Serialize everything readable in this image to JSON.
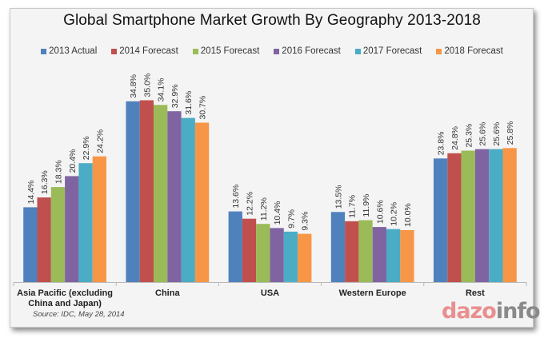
{
  "chart_data": {
    "type": "bar",
    "title": "Global Smartphone Market Growth By Geography 2013-2018",
    "xlabel": "",
    "ylabel": "",
    "ylim": [
      0,
      36
    ],
    "grid": false,
    "legend_position": "top",
    "categories": [
      [
        "Asia Pacific (excluding",
        "China and Japan)"
      ],
      [
        "China"
      ],
      [
        "USA"
      ],
      [
        "Western Europe"
      ],
      [
        "Rest"
      ]
    ],
    "series": [
      {
        "name": "2013 Actual",
        "color": "#4f81bd",
        "values": [
          14.4,
          34.8,
          13.6,
          13.5,
          23.8
        ]
      },
      {
        "name": "2014 Forecast",
        "color": "#c0504d",
        "values": [
          16.3,
          35.0,
          12.2,
          11.7,
          24.8
        ]
      },
      {
        "name": "2015 Forecast",
        "color": "#9bbb59",
        "values": [
          18.3,
          34.1,
          11.2,
          11.9,
          25.3
        ]
      },
      {
        "name": "2016 Forecast",
        "color": "#8064a2",
        "values": [
          20.4,
          32.9,
          10.4,
          10.6,
          25.6
        ]
      },
      {
        "name": "2017 Forecast",
        "color": "#4bacc6",
        "values": [
          22.9,
          31.6,
          9.7,
          10.2,
          25.6
        ]
      },
      {
        "name": "2018 Forecast",
        "color": "#f79646",
        "values": [
          24.2,
          30.7,
          9.3,
          10.0,
          25.8
        ]
      }
    ],
    "value_suffix": "%",
    "source": "Source: IDC, May 28, 2014"
  },
  "branding": {
    "logo_part1": "daz",
    "logo_part2": "o",
    "logo_part3": "info"
  }
}
